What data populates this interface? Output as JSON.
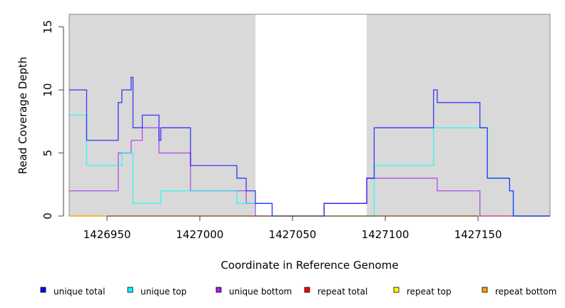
{
  "chart_data": {
    "type": "line",
    "step": true,
    "xlabel": "Coordinate in Reference Genome",
    "ylabel": "Read Coverage Depth",
    "xlim": [
      1426929.6,
      1427188.8
    ],
    "ylim": [
      0,
      16
    ],
    "xticks": [
      1426950,
      1427000,
      1427050,
      1427100,
      1427150
    ],
    "yticks": [
      0,
      5,
      10,
      15
    ],
    "shaded_regions": [
      [
        1426929.6,
        1427030
      ],
      [
        1427090,
        1427188.8
      ]
    ],
    "series": [
      {
        "name": "repeat total",
        "color": "#ff0000",
        "x": [
          1426929.6,
          1427188.8
        ],
        "y": [
          0,
          0
        ]
      },
      {
        "name": "repeat top",
        "color": "#ffff00",
        "x": [
          1426929.6,
          1427188.8
        ],
        "y": [
          0,
          0
        ]
      },
      {
        "name": "repeat bottom",
        "color": "#ffa500",
        "x": [
          1426929.6,
          1427188.8
        ],
        "y": [
          0,
          0
        ]
      },
      {
        "name": "unique bottom",
        "color": "#a020f0",
        "x": [
          1426929.6,
          1426956,
          1426963,
          1426969,
          1426978,
          1426995,
          1427025,
          1427030,
          1427067,
          1427090,
          1427128,
          1427151,
          1427188.8
        ],
        "y": [
          2,
          5,
          6,
          7,
          5,
          2,
          1,
          0,
          1,
          3,
          2,
          0,
          0
        ]
      },
      {
        "name": "unique top",
        "color": "#00ffff",
        "x": [
          1426929.6,
          1426939,
          1426958,
          1426964,
          1426979,
          1427020,
          1427039,
          1427094,
          1427126,
          1427155,
          1427167,
          1427169,
          1427188.8
        ],
        "y": [
          8,
          4,
          5,
          1,
          2,
          1,
          0,
          4,
          7,
          3,
          2,
          0,
          0
        ]
      },
      {
        "name": "unique total",
        "color": "#0000ff",
        "x": [
          1426929.6,
          1426939,
          1426956,
          1426958,
          1426963,
          1426964,
          1426969,
          1426978,
          1426979,
          1426995,
          1427020,
          1427025,
          1427030,
          1427039,
          1427067,
          1427090,
          1427094,
          1427126,
          1427128,
          1427151,
          1427155,
          1427167,
          1427169,
          1427188.8
        ],
        "y": [
          10,
          6,
          9,
          10,
          11,
          7,
          8,
          6,
          7,
          4,
          3,
          2,
          1,
          0,
          1,
          3,
          7,
          10,
          9,
          7,
          3,
          2,
          0,
          0
        ]
      }
    ],
    "legend": [
      {
        "label": "unique total",
        "color": "#0000ff"
      },
      {
        "label": "unique top",
        "color": "#00ffff"
      },
      {
        "label": "unique bottom",
        "color": "#a020f0"
      },
      {
        "label": "repeat total",
        "color": "#ff0000"
      },
      {
        "label": "repeat top",
        "color": "#ffff00"
      },
      {
        "label": "repeat bottom",
        "color": "#ffa500"
      }
    ],
    "legend_position": "bottom"
  }
}
